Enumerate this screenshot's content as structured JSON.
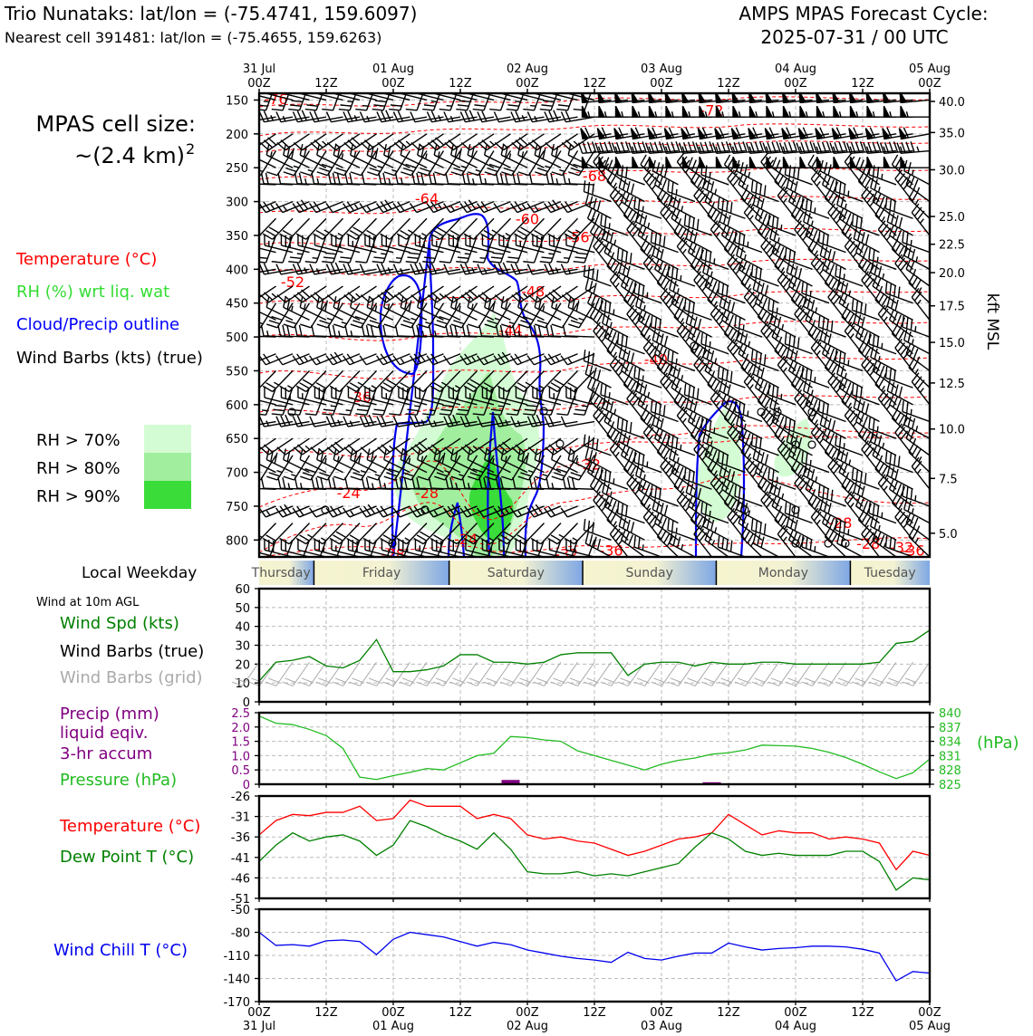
{
  "header": {
    "title_line1": "Trio Nunataks: lat/lon = (-75.4741, 159.6097)",
    "title_line2": "Nearest cell 391481: lat/lon = (-75.4655, 159.6263)",
    "cycle_line1": "AMPS MPAS Forecast Cycle:",
    "cycle_line2": "2025-07-31 / 00 UTC"
  },
  "left_panel": {
    "cell_size_line1": "MPAS cell size:",
    "cell_size_line2": "~(2.4 km)",
    "cell_size_sup": "2",
    "legend_temperature": "Temperature (°C)",
    "legend_rh": "RH (%) wrt liq. wat",
    "legend_cloud": "Cloud/Precip outline",
    "legend_wind": "Wind Barbs (kts) (true)",
    "rh_levels": [
      {
        "label": "RH > 70%",
        "color": "#d4fcd4"
      },
      {
        "label": "RH > 80%",
        "color": "#a0ee9e"
      },
      {
        "label": "RH > 90%",
        "color": "#3adc3a"
      }
    ]
  },
  "colors": {
    "temperature": "#ff0000",
    "rh_text": "#33dd33",
    "cloud": "#0000ff",
    "wind_speed": "#008000",
    "wind_grid": "#aaaaaa",
    "precip": "#800080",
    "pressure": "#22bb22",
    "dewpoint": "#008000",
    "windchill": "#0000ee"
  },
  "time_axis": {
    "top_labels": [
      {
        "hour": 0,
        "date": "31 Jul",
        "time": "00Z"
      },
      {
        "hour": 12,
        "date": "",
        "time": "12Z"
      },
      {
        "hour": 24,
        "date": "01 Aug",
        "time": "00Z"
      },
      {
        "hour": 36,
        "date": "",
        "time": "12Z"
      },
      {
        "hour": 48,
        "date": "02 Aug",
        "time": "00Z"
      },
      {
        "hour": 60,
        "date": "",
        "time": "12Z"
      },
      {
        "hour": 72,
        "date": "03 Aug",
        "time": "00Z"
      },
      {
        "hour": 84,
        "date": "",
        "time": "12Z"
      },
      {
        "hour": 96,
        "date": "04 Aug",
        "time": "00Z"
      },
      {
        "hour": 108,
        "date": "",
        "time": "12Z"
      },
      {
        "hour": 120,
        "date": "05 Aug",
        "time": "00Z"
      }
    ]
  },
  "weekday_bar": {
    "label": "Local Weekday",
    "days": [
      "Thursday",
      "Friday",
      "Saturday",
      "Sunday",
      "Monday",
      "Tuesday"
    ]
  },
  "chart_data": [
    {
      "type": "heatmap",
      "name": "upper-air time-height section",
      "x_unit": "hours since 2025-07-31 00Z",
      "xlim": [
        0,
        120
      ],
      "y_label_left": "pressure (hPa)",
      "ylim": [
        825,
        140
      ],
      "y_ticks": [
        150,
        200,
        250,
        300,
        350,
        400,
        450,
        500,
        550,
        600,
        650,
        700,
        750,
        800
      ],
      "right_axis_label": "kft MSL",
      "right_ticks": [
        {
          "label": "40.0",
          "p": 152
        },
        {
          "label": "35.0",
          "p": 198
        },
        {
          "label": "30.0",
          "p": 253
        },
        {
          "label": "25.0",
          "p": 322
        },
        {
          "label": "22.5",
          "p": 363
        },
        {
          "label": "20.0",
          "p": 405
        },
        {
          "label": "17.5",
          "p": 454
        },
        {
          "label": "15.0",
          "p": 508
        },
        {
          "label": "12.5",
          "p": 568
        },
        {
          "label": "10.0",
          "p": 636
        },
        {
          "label": "7.5",
          "p": 709
        },
        {
          "label": "5.0",
          "p": 790
        }
      ],
      "temperature_labels": [
        {
          "text": "-76",
          "t": 3,
          "p": 148
        },
        {
          "text": "-72",
          "t": 81,
          "p": 165
        },
        {
          "text": "-68",
          "t": 60,
          "p": 262
        },
        {
          "text": "-64",
          "t": 30,
          "p": 295
        },
        {
          "text": "-60",
          "t": 48,
          "p": 325
        },
        {
          "text": "-56",
          "t": 57,
          "p": 352
        },
        {
          "text": "-52",
          "t": 6,
          "p": 418
        },
        {
          "text": "-48",
          "t": 49,
          "p": 432
        },
        {
          "text": "-44",
          "t": 45,
          "p": 490
        },
        {
          "text": "-40",
          "t": 71,
          "p": 533
        },
        {
          "text": "-36",
          "t": 18,
          "p": 588
        },
        {
          "text": "-32",
          "t": 59,
          "p": 688
        },
        {
          "text": "-28",
          "t": 30,
          "p": 730
        },
        {
          "text": "-24",
          "t": 16,
          "p": 730
        },
        {
          "text": "-24",
          "t": 37,
          "p": 798
        },
        {
          "text": "-28",
          "t": 104,
          "p": 774
        },
        {
          "text": "-28",
          "t": 109,
          "p": 805
        },
        {
          "text": "-32",
          "t": 115,
          "p": 810
        },
        {
          "text": "-36",
          "t": 117,
          "p": 815
        },
        {
          "text": "-28",
          "t": 24,
          "p": 820
        },
        {
          "text": "-32",
          "t": 55,
          "p": 820
        },
        {
          "text": "-36",
          "t": 63,
          "p": 815
        }
      ]
    },
    {
      "type": "line",
      "name": "Wind at 10m AGL",
      "panel_label": "Wind at 10m AGL",
      "ylabel": "Wind Spd (kts)",
      "barb_true_label": "Wind Barbs (true)",
      "barb_grid_label": "Wind Barbs (grid)",
      "ylim": [
        0,
        60
      ],
      "y_ticks": [
        0,
        10,
        20,
        30,
        40,
        50,
        60
      ],
      "x": [
        0,
        3,
        6,
        9,
        12,
        15,
        18,
        21,
        24,
        27,
        30,
        33,
        36,
        39,
        42,
        45,
        48,
        51,
        54,
        57,
        60,
        63,
        66,
        69,
        72,
        75,
        78,
        81,
        84,
        87,
        90,
        93,
        96,
        99,
        102,
        105,
        108,
        111,
        114,
        117,
        120
      ],
      "values": [
        11,
        21,
        22,
        24,
        19,
        18,
        22,
        33,
        16,
        16,
        17,
        19,
        25,
        25,
        21,
        21,
        20,
        21,
        25,
        26,
        26,
        26,
        14,
        20,
        21,
        21,
        19,
        21,
        20,
        20,
        21,
        21,
        20,
        20,
        20,
        20,
        20,
        21,
        31,
        32,
        38
      ]
    },
    {
      "type": "line",
      "name": "Precip and Pressure",
      "precip_label_lines": [
        "Precip (mm)",
        "liquid eqiv.",
        "3-hr accum"
      ],
      "pressure_label": "Pressure (hPa)",
      "right_unit": "(hPa)",
      "precip_ylim": [
        0,
        2.5
      ],
      "precip_ticks": [
        "0",
        "0.5",
        "1.0",
        "1.5",
        "2.0",
        "2.5"
      ],
      "pressure_ylim": [
        825,
        840
      ],
      "pressure_ticks": [
        "825",
        "828",
        "831",
        "834",
        "837",
        "840"
      ],
      "pressure_x": [
        0,
        3,
        6,
        9,
        12,
        15,
        18,
        21,
        24,
        27,
        30,
        33,
        36,
        39,
        42,
        45,
        48,
        51,
        54,
        57,
        60,
        63,
        66,
        69,
        72,
        75,
        78,
        81,
        84,
        87,
        90,
        93,
        96,
        99,
        102,
        105,
        108,
        111,
        114,
        117,
        120
      ],
      "pressure_values": [
        839.3,
        837.8,
        837.5,
        836.5,
        835.2,
        832.5,
        826.5,
        826.0,
        826.8,
        827.5,
        828.3,
        828.0,
        829.5,
        831.0,
        831.5,
        835.0,
        834.8,
        834.3,
        834.0,
        832.0,
        831.0,
        830.0,
        829.0,
        828.0,
        829.2,
        830.0,
        830.5,
        831.3,
        831.6,
        832.2,
        833.2,
        833.1,
        833.0,
        832.5,
        831.7,
        830.6,
        829.2,
        827.6,
        826.2,
        827.4,
        830.3
      ],
      "precip_x": [
        45,
        81
      ],
      "precip_values": [
        0.15,
        0.07
      ]
    },
    {
      "type": "line",
      "name": "Temperature and Dew Point",
      "temperature_label": "Temperature (°C)",
      "dewpoint_label": "Dew Point T (°C)",
      "ylim": [
        -51,
        -26
      ],
      "y_ticks": [
        -26,
        -31,
        -36,
        -41,
        -46,
        -51
      ],
      "x": [
        0,
        3,
        6,
        9,
        12,
        15,
        18,
        21,
        24,
        27,
        30,
        33,
        36,
        39,
        42,
        45,
        48,
        51,
        54,
        57,
        60,
        63,
        66,
        69,
        72,
        75,
        78,
        81,
        84,
        87,
        90,
        93,
        96,
        99,
        102,
        105,
        108,
        111,
        114,
        117,
        120
      ],
      "temperature": [
        -35.5,
        -32,
        -30.5,
        -30.8,
        -30,
        -30,
        -28.5,
        -32,
        -31.5,
        -27,
        -28.5,
        -28.5,
        -28.5,
        -31.5,
        -30.5,
        -31.5,
        -35.5,
        -36.5,
        -36,
        -37,
        -37.5,
        -39,
        -40.5,
        -39.5,
        -38,
        -36.5,
        -36,
        -35,
        -30.5,
        -33,
        -35.5,
        -34.5,
        -35,
        -35,
        -36.5,
        -36,
        -36.5,
        -37.5,
        -44,
        -39.5,
        -40.5
      ],
      "dewpoint": [
        -42,
        -38,
        -35,
        -37,
        -36,
        -35.5,
        -37,
        -40.5,
        -38,
        -32,
        -33.5,
        -35.5,
        -37,
        -39,
        -35,
        -39,
        -44.5,
        -45,
        -45,
        -44.5,
        -45.5,
        -45,
        -45.5,
        -44.5,
        -43.5,
        -42.5,
        -38.5,
        -35,
        -36.5,
        -39.5,
        -40.5,
        -40,
        -40.5,
        -40.5,
        -40.5,
        -39.5,
        -39.5,
        -42,
        -49,
        -46,
        -46.5
      ]
    },
    {
      "type": "line",
      "name": "Wind Chill",
      "ylabel": "Wind Chill T (°C)",
      "ylim": [
        -170,
        -50
      ],
      "y_ticks": [
        -50,
        -80,
        -110,
        -140,
        -170
      ],
      "x_ticks": [
        {
          "hour": 0,
          "time": "00Z",
          "date": "31 Jul"
        },
        {
          "hour": 12,
          "time": "12Z",
          "date": ""
        },
        {
          "hour": 24,
          "time": "00Z",
          "date": "01 Aug"
        },
        {
          "hour": 36,
          "time": "12Z",
          "date": ""
        },
        {
          "hour": 48,
          "time": "00Z",
          "date": "02 Aug"
        },
        {
          "hour": 60,
          "time": "12Z",
          "date": ""
        },
        {
          "hour": 72,
          "time": "00Z",
          "date": "03 Aug"
        },
        {
          "hour": 84,
          "time": "12Z",
          "date": ""
        },
        {
          "hour": 96,
          "time": "00Z",
          "date": "04 Aug"
        },
        {
          "hour": 108,
          "time": "12Z",
          "date": ""
        },
        {
          "hour": 120,
          "time": "00Z",
          "date": "05 Aug"
        }
      ],
      "x": [
        0,
        3,
        6,
        9,
        12,
        15,
        18,
        21,
        24,
        27,
        30,
        33,
        36,
        39,
        42,
        45,
        48,
        51,
        54,
        57,
        60,
        63,
        66,
        69,
        72,
        75,
        78,
        81,
        84,
        87,
        90,
        93,
        96,
        99,
        102,
        105,
        108,
        111,
        114,
        117,
        120
      ],
      "values": [
        -80,
        -97,
        -96,
        -98,
        -91,
        -90,
        -92,
        -109,
        -89,
        -80,
        -83,
        -86,
        -92,
        -98,
        -93,
        -96,
        -103,
        -107,
        -111,
        -114,
        -116,
        -119,
        -106,
        -114,
        -116,
        -111,
        -107,
        -107,
        -94,
        -99,
        -103,
        -101,
        -100,
        -98,
        -98,
        -99,
        -102,
        -107,
        -143,
        -131,
        -133
      ]
    }
  ]
}
